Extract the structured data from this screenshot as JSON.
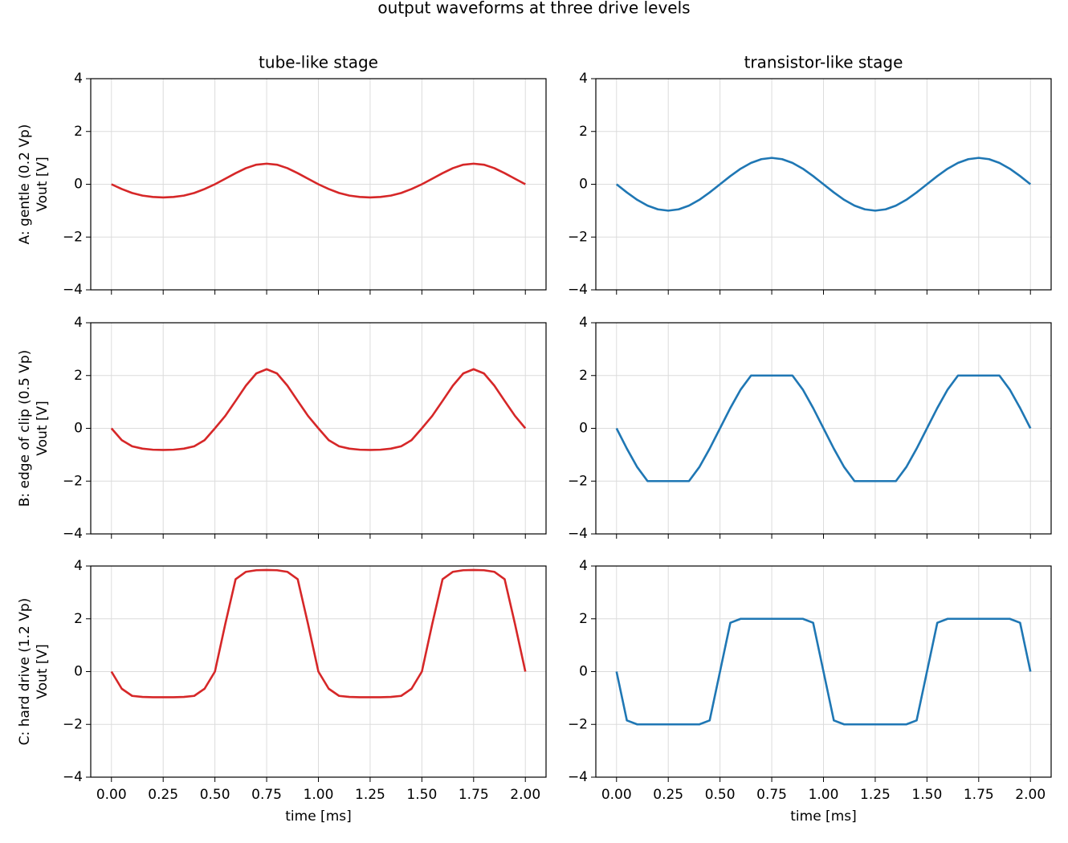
{
  "title": "output waveforms at three drive levels",
  "chart_data": [
    {
      "type": "line",
      "title": "tube-like stage",
      "ylabel": [
        "A: gentle (0.2 Vp)",
        "Vout [V]"
      ],
      "color": "#d62728",
      "grid": true,
      "xlim": [
        -0.1,
        2.1
      ],
      "ylim": [
        -4,
        4
      ],
      "xticks": [
        {
          "value": 0,
          "label": "0.00"
        },
        {
          "value": 0.25,
          "label": "0.25"
        },
        {
          "value": 0.5,
          "label": "0.50"
        },
        {
          "value": 0.75,
          "label": "0.75"
        },
        {
          "value": 1,
          "label": "1.00"
        },
        {
          "value": 1.25,
          "label": "1.25"
        },
        {
          "value": 1.5,
          "label": "1.50"
        },
        {
          "value": 1.75,
          "label": "1.75"
        },
        {
          "value": 2,
          "label": "2.00"
        }
      ],
      "yticks": [
        {
          "value": -4,
          "label": "−4"
        },
        {
          "value": -2,
          "label": "−2"
        },
        0,
        2,
        4
      ],
      "x": [
        0,
        0.05,
        0.1,
        0.15,
        0.2,
        0.25,
        0.3,
        0.35,
        0.4,
        0.45,
        0.5,
        0.55,
        0.6,
        0.65,
        0.7,
        0.75,
        0.8,
        0.85,
        0.9,
        0.95,
        1,
        1.05,
        1.1,
        1.15,
        1.2,
        1.25,
        1.3,
        1.35,
        1.4,
        1.45,
        1.5,
        1.55,
        1.6,
        1.65,
        1.7,
        1.75,
        1.8,
        1.85,
        1.9,
        1.95,
        2
      ],
      "values": [
        0,
        -0.18,
        -0.33,
        -0.43,
        -0.48,
        -0.5,
        -0.48,
        -0.43,
        -0.33,
        -0.18,
        0,
        0.21,
        0.42,
        0.61,
        0.74,
        0.78,
        0.74,
        0.61,
        0.42,
        0.21,
        0,
        -0.18,
        -0.33,
        -0.43,
        -0.48,
        -0.5,
        -0.48,
        -0.43,
        -0.33,
        -0.18,
        0,
        0.21,
        0.42,
        0.61,
        0.74,
        0.78,
        0.74,
        0.61,
        0.42,
        0.21,
        0
      ]
    },
    {
      "type": "line",
      "title": "transistor-like stage",
      "color": "#1f77b4",
      "grid": true,
      "xlim": [
        -0.1,
        2.1
      ],
      "ylim": [
        -4,
        4
      ],
      "xticks": [
        {
          "value": 0,
          "label": "0.00"
        },
        {
          "value": 0.25,
          "label": "0.25"
        },
        {
          "value": 0.5,
          "label": "0.50"
        },
        {
          "value": 0.75,
          "label": "0.75"
        },
        {
          "value": 1,
          "label": "1.00"
        },
        {
          "value": 1.25,
          "label": "1.25"
        },
        {
          "value": 1.5,
          "label": "1.50"
        },
        {
          "value": 1.75,
          "label": "1.75"
        },
        {
          "value": 2,
          "label": "2.00"
        }
      ],
      "yticks": [
        {
          "value": -4,
          "label": "−4"
        },
        {
          "value": -2,
          "label": "−2"
        },
        0,
        2,
        4
      ],
      "x": [
        0,
        0.05,
        0.1,
        0.15,
        0.2,
        0.25,
        0.3,
        0.35,
        0.4,
        0.45,
        0.5,
        0.55,
        0.6,
        0.65,
        0.7,
        0.75,
        0.8,
        0.85,
        0.9,
        0.95,
        1,
        1.05,
        1.1,
        1.15,
        1.2,
        1.25,
        1.3,
        1.35,
        1.4,
        1.45,
        1.5,
        1.55,
        1.6,
        1.65,
        1.7,
        1.75,
        1.8,
        1.85,
        1.9,
        1.95,
        2
      ],
      "values": [
        0,
        -0.31,
        -0.59,
        -0.81,
        -0.95,
        -1,
        -0.95,
        -0.81,
        -0.59,
        -0.31,
        0,
        0.31,
        0.59,
        0.81,
        0.95,
        1,
        0.95,
        0.81,
        0.59,
        0.31,
        0,
        -0.31,
        -0.59,
        -0.81,
        -0.95,
        -1,
        -0.95,
        -0.81,
        -0.59,
        -0.31,
        0,
        0.31,
        0.59,
        0.81,
        0.95,
        1,
        0.95,
        0.81,
        0.59,
        0.31,
        0
      ]
    },
    {
      "type": "line",
      "ylabel": [
        "B: edge of clip (0.5 Vp)",
        "Vout [V]"
      ],
      "color": "#d62728",
      "grid": true,
      "xlim": [
        -0.1,
        2.1
      ],
      "ylim": [
        -4,
        4
      ],
      "xticks": [
        {
          "value": 0,
          "label": "0.00"
        },
        {
          "value": 0.25,
          "label": "0.25"
        },
        {
          "value": 0.5,
          "label": "0.50"
        },
        {
          "value": 0.75,
          "label": "0.75"
        },
        {
          "value": 1,
          "label": "1.00"
        },
        {
          "value": 1.25,
          "label": "1.25"
        },
        {
          "value": 1.5,
          "label": "1.50"
        },
        {
          "value": 1.75,
          "label": "1.75"
        },
        {
          "value": 2,
          "label": "2.00"
        }
      ],
      "yticks": [
        {
          "value": -4,
          "label": "−4"
        },
        {
          "value": -2,
          "label": "−2"
        },
        0,
        2,
        4
      ],
      "x": [
        0,
        0.05,
        0.1,
        0.15,
        0.2,
        0.25,
        0.3,
        0.35,
        0.4,
        0.45,
        0.5,
        0.55,
        0.6,
        0.65,
        0.7,
        0.75,
        0.8,
        0.85,
        0.9,
        0.95,
        1,
        1.05,
        1.1,
        1.15,
        1.2,
        1.25,
        1.3,
        1.35,
        1.4,
        1.45,
        1.5,
        1.55,
        1.6,
        1.65,
        1.7,
        1.75,
        1.8,
        1.85,
        1.9,
        1.95,
        2
      ],
      "values": [
        0,
        -0.45,
        -0.68,
        -0.77,
        -0.81,
        -0.82,
        -0.81,
        -0.77,
        -0.68,
        -0.45,
        0,
        0.47,
        1.04,
        1.62,
        2.08,
        2.24,
        2.08,
        1.62,
        1.04,
        0.47,
        0,
        -0.45,
        -0.68,
        -0.77,
        -0.81,
        -0.82,
        -0.81,
        -0.77,
        -0.68,
        -0.45,
        0,
        0.47,
        1.04,
        1.62,
        2.08,
        2.24,
        2.08,
        1.62,
        1.04,
        0.47,
        0
      ]
    },
    {
      "type": "line",
      "color": "#1f77b4",
      "grid": true,
      "xlim": [
        -0.1,
        2.1
      ],
      "ylim": [
        -4,
        4
      ],
      "xticks": [
        {
          "value": 0,
          "label": "0.00"
        },
        {
          "value": 0.25,
          "label": "0.25"
        },
        {
          "value": 0.5,
          "label": "0.50"
        },
        {
          "value": 0.75,
          "label": "0.75"
        },
        {
          "value": 1,
          "label": "1.00"
        },
        {
          "value": 1.25,
          "label": "1.25"
        },
        {
          "value": 1.5,
          "label": "1.50"
        },
        {
          "value": 1.75,
          "label": "1.75"
        },
        {
          "value": 2,
          "label": "2.00"
        }
      ],
      "yticks": [
        {
          "value": -4,
          "label": "−4"
        },
        {
          "value": -2,
          "label": "−2"
        },
        0,
        2,
        4
      ],
      "x": [
        0,
        0.05,
        0.1,
        0.15,
        0.2,
        0.25,
        0.3,
        0.35,
        0.4,
        0.45,
        0.5,
        0.55,
        0.6,
        0.65,
        0.7,
        0.75,
        0.8,
        0.85,
        0.9,
        0.95,
        1,
        1.05,
        1.1,
        1.15,
        1.2,
        1.25,
        1.3,
        1.35,
        1.4,
        1.45,
        1.5,
        1.55,
        1.6,
        1.65,
        1.7,
        1.75,
        1.8,
        1.85,
        1.9,
        1.95,
        2
      ],
      "values": [
        0,
        -0.77,
        -1.47,
        -2,
        -2,
        -2,
        -2,
        -2,
        -1.47,
        -0.77,
        0,
        0.77,
        1.47,
        2,
        2,
        2,
        2,
        2,
        1.47,
        0.77,
        0,
        -0.77,
        -1.47,
        -2,
        -2,
        -2,
        -2,
        -2,
        -1.47,
        -0.77,
        0,
        0.77,
        1.47,
        2,
        2,
        2,
        2,
        2,
        1.47,
        0.77,
        0
      ]
    },
    {
      "type": "line",
      "ylabel": [
        "C: hard drive (1.2 Vp)",
        "Vout [V]"
      ],
      "xlabel": "time [ms]",
      "color": "#d62728",
      "grid": true,
      "xlim": [
        -0.1,
        2.1
      ],
      "ylim": [
        -4,
        4
      ],
      "xticks": [
        {
          "value": 0,
          "label": "0.00"
        },
        {
          "value": 0.25,
          "label": "0.25"
        },
        {
          "value": 0.5,
          "label": "0.50"
        },
        {
          "value": 0.75,
          "label": "0.75"
        },
        {
          "value": 1,
          "label": "1.00"
        },
        {
          "value": 1.25,
          "label": "1.25"
        },
        {
          "value": 1.5,
          "label": "1.50"
        },
        {
          "value": 1.75,
          "label": "1.75"
        },
        {
          "value": 2,
          "label": "2.00"
        }
      ],
      "yticks": [
        {
          "value": -4,
          "label": "−4"
        },
        {
          "value": -2,
          "label": "−2"
        },
        0,
        2,
        4
      ],
      "x": [
        0,
        0.05,
        0.1,
        0.15,
        0.2,
        0.25,
        0.3,
        0.35,
        0.4,
        0.45,
        0.5,
        0.55,
        0.6,
        0.65,
        0.7,
        0.75,
        0.8,
        0.85,
        0.9,
        0.95,
        1,
        1.05,
        1.1,
        1.15,
        1.2,
        1.25,
        1.3,
        1.35,
        1.4,
        1.45,
        1.5,
        1.55,
        1.6,
        1.65,
        1.7,
        1.75,
        1.8,
        1.85,
        1.9,
        1.95,
        2
      ],
      "values": [
        0,
        -0.65,
        -0.92,
        -0.96,
        -0.97,
        -0.97,
        -0.97,
        -0.96,
        -0.92,
        -0.65,
        0,
        1.8,
        3.5,
        3.78,
        3.84,
        3.85,
        3.84,
        3.78,
        3.5,
        1.8,
        0,
        -0.65,
        -0.92,
        -0.96,
        -0.97,
        -0.97,
        -0.97,
        -0.96,
        -0.92,
        -0.65,
        0,
        1.8,
        3.5,
        3.78,
        3.84,
        3.85,
        3.84,
        3.78,
        3.5,
        1.8,
        0
      ]
    },
    {
      "type": "line",
      "xlabel": "time [ms]",
      "color": "#1f77b4",
      "grid": true,
      "xlim": [
        -0.1,
        2.1
      ],
      "ylim": [
        -4,
        4
      ],
      "xticks": [
        {
          "value": 0,
          "label": "0.00"
        },
        {
          "value": 0.25,
          "label": "0.25"
        },
        {
          "value": 0.5,
          "label": "0.50"
        },
        {
          "value": 0.75,
          "label": "0.75"
        },
        {
          "value": 1,
          "label": "1.00"
        },
        {
          "value": 1.25,
          "label": "1.25"
        },
        {
          "value": 1.5,
          "label": "1.50"
        },
        {
          "value": 1.75,
          "label": "1.75"
        },
        {
          "value": 2,
          "label": "2.00"
        }
      ],
      "yticks": [
        {
          "value": -4,
          "label": "−4"
        },
        {
          "value": -2,
          "label": "−2"
        },
        0,
        2,
        4
      ],
      "x": [
        0,
        0.05,
        0.1,
        0.15,
        0.2,
        0.25,
        0.3,
        0.35,
        0.4,
        0.45,
        0.5,
        0.55,
        0.6,
        0.65,
        0.7,
        0.75,
        0.8,
        0.85,
        0.9,
        0.95,
        1,
        1.05,
        1.1,
        1.15,
        1.2,
        1.25,
        1.3,
        1.35,
        1.4,
        1.45,
        1.5,
        1.55,
        1.6,
        1.65,
        1.7,
        1.75,
        1.8,
        1.85,
        1.9,
        1.95,
        2
      ],
      "values": [
        0,
        -1.85,
        -2,
        -2,
        -2,
        -2,
        -2,
        -2,
        -2,
        -1.85,
        0,
        1.85,
        2,
        2,
        2,
        2,
        2,
        2,
        2,
        1.85,
        0,
        -1.85,
        -2,
        -2,
        -2,
        -2,
        -2,
        -2,
        -2,
        -1.85,
        0,
        1.85,
        2,
        2,
        2,
        2,
        2,
        2,
        2,
        1.85,
        0
      ]
    }
  ]
}
